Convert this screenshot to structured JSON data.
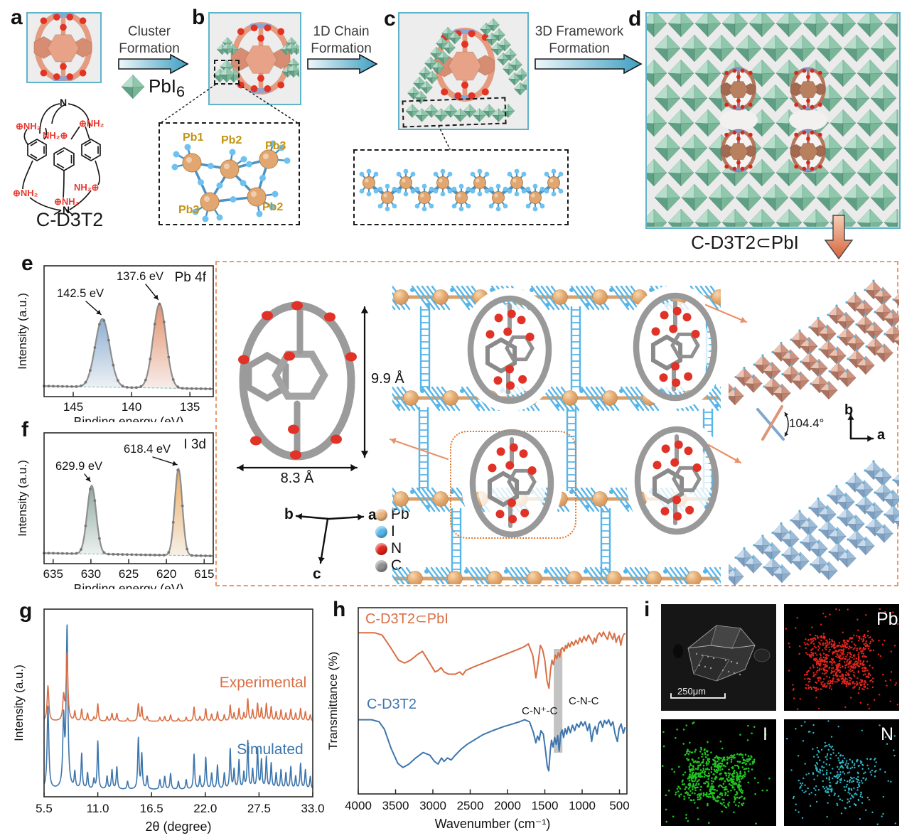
{
  "figure": {
    "panel_labels": {
      "a": "a",
      "b": "b",
      "c": "c",
      "d": "d",
      "e": "e",
      "f": "f",
      "g": "g",
      "h": "h",
      "i": "i"
    },
    "molecule_name": "C-D3T2",
    "product_name": "C-D3T2⊂PbI",
    "steps": {
      "step1": {
        "line1": "Cluster",
        "line2": "Formation"
      },
      "step2": {
        "line1": "1D Chain",
        "line2": "Formation"
      },
      "step3": {
        "line1": "3D Framework",
        "line2": "Formation"
      }
    },
    "pbi6_label": {
      "base": "PbI",
      "sub": "6"
    },
    "chem_structure": {
      "n_top": "N",
      "n_bottom": "N",
      "nh2_1": "⊕NH₂",
      "nh2_2": "NH₂⊕",
      "nh2_3": "⊕NH₂",
      "nh2_4": "⊕NH₂",
      "nh2_5": "NH₂⊕",
      "nh2_6": "⊕NH₂"
    },
    "cluster_inset": {
      "pb1": "Pb1",
      "pb2": "Pb2",
      "pb3": "Pb3",
      "pb3b": "Pb3",
      "pb2b": "Pb2"
    },
    "structure_panel": {
      "height": "9.9 Å",
      "width": "8.3 Å",
      "angle": "104.4°",
      "axis_b": "b",
      "axis_a": "a",
      "axis_c": "c",
      "axis_b2": "b",
      "axis_a2": "a",
      "legend": [
        {
          "label": "Pb",
          "color": "#eab37e"
        },
        {
          "label": "I",
          "color": "#56b7ea"
        },
        {
          "label": "N",
          "color": "#e0251b"
        },
        {
          "label": "C",
          "color": "#8f8f8f"
        }
      ]
    },
    "edx": {
      "scale_bar": "250μm",
      "map1": "Pb",
      "map2": "I",
      "map3": "N"
    }
  },
  "chart_data": [
    {
      "id": "xps_pb",
      "type": "line",
      "title": "Pb 4f",
      "xlabel": "Binding energy (eV)",
      "ylabel": "Intensity (a.u.)",
      "x_left": 147.5,
      "x_right": 133.0,
      "ticks": [
        "145",
        "140",
        "135"
      ],
      "peaks": [
        {
          "center": 142.5,
          "amp": 0.6,
          "sigma": 0.62,
          "fill_top": "#84a9cf",
          "fill_bottom": "#eef1f4",
          "label": "142.5 eV"
        },
        {
          "center": 137.6,
          "amp": 0.74,
          "sigma": 0.55,
          "fill_top": "#e38a63",
          "fill_bottom": "#f6ece8",
          "label": "137.6 eV"
        }
      ],
      "curve_color": "#8e8e8e",
      "marker_color": "#767676"
    },
    {
      "id": "xps_i",
      "type": "line",
      "title": "I 3d",
      "xlabel": "Binding energy (eV)",
      "ylabel": "Intensity (a.u.)",
      "x_left": 636.2,
      "x_right": 613.8,
      "ticks": [
        "635",
        "630",
        "625",
        "620",
        "615"
      ],
      "peaks": [
        {
          "center": 629.9,
          "amp": 0.6,
          "sigma": 0.6,
          "fill_top": "#86a498",
          "fill_bottom": "#edf1ef",
          "label": "629.9 eV"
        },
        {
          "center": 618.4,
          "amp": 0.76,
          "sigma": 0.5,
          "fill_top": "#e9a757",
          "fill_bottom": "#f6efe6",
          "label": "618.4 eV"
        }
      ],
      "curve_color": "#8e8e8e",
      "marker_color": "#767676"
    },
    {
      "id": "pxrd",
      "type": "line",
      "xlabel": "2θ (degree)",
      "ylabel": "Intensity (a.u.)",
      "xmin": 5.5,
      "xmax": 33.0,
      "ticks": [
        "5.5",
        "11.0",
        "16.5",
        "22.0",
        "27.5",
        "33.0"
      ],
      "peak_positions": [
        5.9,
        7.5,
        7.85,
        8.65,
        9.35,
        9.95,
        10.6,
        11.0,
        11.95,
        12.45,
        12.95,
        14.05,
        15.15,
        15.5,
        16.05,
        17.35,
        17.85,
        18.45,
        19.25,
        20.05,
        20.85,
        21.45,
        22.05,
        22.65,
        23.25,
        23.95,
        24.55,
        24.95,
        25.45,
        25.95,
        26.35,
        26.85,
        27.35,
        27.75,
        28.25,
        28.75,
        29.25,
        29.75,
        30.25,
        30.75,
        31.25,
        31.75,
        32.25,
        32.75
      ],
      "series": [
        {
          "name": "Experimental",
          "color": "#d96f45",
          "heights": [
            0.45,
            0.3,
            0.85,
            0.12,
            0.15,
            0.1,
            0.05,
            0.22,
            0.06,
            0.1,
            0.1,
            0.04,
            0.22,
            0.18,
            0.06,
            0.05,
            0.06,
            0.08,
            0.04,
            0.05,
            0.18,
            0.06,
            0.16,
            0.09,
            0.12,
            0.08,
            0.2,
            0.1,
            0.16,
            0.1,
            0.28,
            0.14,
            0.22,
            0.16,
            0.22,
            0.18,
            0.12,
            0.14,
            0.1,
            0.15,
            0.1,
            0.16,
            0.12,
            0.08
          ]
        },
        {
          "name": "Simulated",
          "color": "#3d76ad",
          "heights": [
            0.52,
            0.42,
            1.0,
            0.1,
            0.22,
            0.1,
            0.06,
            0.3,
            0.08,
            0.12,
            0.14,
            0.05,
            0.32,
            0.22,
            0.08,
            0.06,
            0.08,
            0.1,
            0.05,
            0.06,
            0.22,
            0.08,
            0.2,
            0.1,
            0.15,
            0.1,
            0.25,
            0.12,
            0.18,
            0.1,
            0.3,
            0.12,
            0.25,
            0.18,
            0.2,
            0.16,
            0.1,
            0.12,
            0.1,
            0.14,
            0.08,
            0.16,
            0.12,
            0.08
          ]
        }
      ]
    },
    {
      "id": "ftir",
      "type": "line",
      "xlabel": "Wavenumber (cm⁻¹)",
      "ylabel": "Transmittance (%)",
      "xmin": 4000,
      "xmax": 400,
      "ticks": [
        "4000",
        "3500",
        "3000",
        "2500",
        "2000",
        "1500",
        "1000",
        "500"
      ],
      "band": {
        "from": 1380,
        "to": 1265
      },
      "annotations": [
        {
          "text": "C-N⁺-C"
        },
        {
          "text": "C-N-C"
        }
      ],
      "series": [
        {
          "name": "C-D3T2⊂PbI",
          "color": "#d96f45",
          "points": [
            [
              4000,
              0.93
            ],
            [
              3780,
              0.93
            ],
            [
              3680,
              0.9
            ],
            [
              3560,
              0.72
            ],
            [
              3460,
              0.56
            ],
            [
              3380,
              0.52
            ],
            [
              3300,
              0.56
            ],
            [
              3200,
              0.64
            ],
            [
              3140,
              0.68
            ],
            [
              3060,
              0.55
            ],
            [
              2970,
              0.4
            ],
            [
              2930,
              0.42
            ],
            [
              2890,
              0.46
            ],
            [
              2850,
              0.4
            ],
            [
              2790,
              0.37
            ],
            [
              2700,
              0.37
            ],
            [
              2640,
              0.4
            ],
            [
              2600,
              0.36
            ],
            [
              2560,
              0.42
            ],
            [
              2450,
              0.47
            ],
            [
              2300,
              0.53
            ],
            [
              2100,
              0.61
            ],
            [
              1950,
              0.67
            ],
            [
              1850,
              0.71
            ],
            [
              1780,
              0.74
            ],
            [
              1720,
              0.78
            ],
            [
              1660,
              0.62
            ],
            [
              1620,
              0.32
            ],
            [
              1595,
              0.48
            ],
            [
              1560,
              0.76
            ],
            [
              1530,
              0.7
            ],
            [
              1500,
              0.56
            ],
            [
              1470,
              0.28
            ],
            [
              1445,
              0.18
            ],
            [
              1425,
              0.42
            ],
            [
              1405,
              0.56
            ],
            [
              1385,
              0.5
            ],
            [
              1360,
              0.63
            ],
            [
              1340,
              0.58
            ],
            [
              1318,
              0.66
            ],
            [
              1300,
              0.6
            ],
            [
              1282,
              0.71
            ],
            [
              1262,
              0.73
            ],
            [
              1240,
              0.68
            ],
            [
              1222,
              0.76
            ],
            [
              1205,
              0.72
            ],
            [
              1185,
              0.79
            ],
            [
              1165,
              0.74
            ],
            [
              1140,
              0.81
            ],
            [
              1112,
              0.76
            ],
            [
              1085,
              0.83
            ],
            [
              1058,
              0.78
            ],
            [
              1030,
              0.86
            ],
            [
              1005,
              0.8
            ],
            [
              975,
              0.88
            ],
            [
              945,
              0.82
            ],
            [
              915,
              0.9
            ],
            [
              885,
              0.84
            ],
            [
              855,
              0.78
            ],
            [
              835,
              0.86
            ],
            [
              815,
              0.8
            ],
            [
              795,
              0.89
            ],
            [
              768,
              0.93
            ],
            [
              740,
              0.88
            ],
            [
              715,
              0.94
            ],
            [
              690,
              0.89
            ],
            [
              660,
              0.84
            ],
            [
              635,
              0.94
            ],
            [
              612,
              0.89
            ],
            [
              590,
              0.84
            ],
            [
              568,
              0.92
            ],
            [
              545,
              0.8
            ],
            [
              525,
              0.86
            ],
            [
              505,
              0.89
            ],
            [
              482,
              0.76
            ],
            [
              462,
              0.86
            ],
            [
              442,
              0.91
            ],
            [
              420,
              0.92
            ]
          ]
        },
        {
          "name": "C-D3T2",
          "color": "#3d76ad",
          "points": [
            [
              4000,
              0.9
            ],
            [
              3820,
              0.9
            ],
            [
              3720,
              0.87
            ],
            [
              3650,
              0.76
            ],
            [
              3560,
              0.48
            ],
            [
              3470,
              0.26
            ],
            [
              3400,
              0.2
            ],
            [
              3320,
              0.25
            ],
            [
              3230,
              0.34
            ],
            [
              3130,
              0.42
            ],
            [
              3040,
              0.38
            ],
            [
              2980,
              0.29
            ],
            [
              2930,
              0.25
            ],
            [
              2885,
              0.34
            ],
            [
              2850,
              0.29
            ],
            [
              2805,
              0.34
            ],
            [
              2755,
              0.31
            ],
            [
              2700,
              0.38
            ],
            [
              2620,
              0.47
            ],
            [
              2540,
              0.54
            ],
            [
              2450,
              0.6
            ],
            [
              2330,
              0.68
            ],
            [
              2200,
              0.74
            ],
            [
              2050,
              0.8
            ],
            [
              1930,
              0.84
            ],
            [
              1840,
              0.87
            ],
            [
              1770,
              0.9
            ],
            [
              1705,
              0.87
            ],
            [
              1655,
              0.72
            ],
            [
              1620,
              0.56
            ],
            [
              1598,
              0.66
            ],
            [
              1575,
              0.6
            ],
            [
              1552,
              0.74
            ],
            [
              1520,
              0.69
            ],
            [
              1492,
              0.46
            ],
            [
              1468,
              0.22
            ],
            [
              1448,
              0.15
            ],
            [
              1428,
              0.44
            ],
            [
              1410,
              0.6
            ],
            [
              1390,
              0.5
            ],
            [
              1368,
              0.64
            ],
            [
              1348,
              0.54
            ],
            [
              1328,
              0.67
            ],
            [
              1308,
              0.44
            ],
            [
              1288,
              0.7
            ],
            [
              1268,
              0.75
            ],
            [
              1248,
              0.64
            ],
            [
              1228,
              0.77
            ],
            [
              1208,
              0.69
            ],
            [
              1185,
              0.8
            ],
            [
              1158,
              0.71
            ],
            [
              1130,
              0.82
            ],
            [
              1100,
              0.74
            ],
            [
              1072,
              0.84
            ],
            [
              1042,
              0.79
            ],
            [
              1015,
              0.87
            ],
            [
              988,
              0.81
            ],
            [
              960,
              0.87
            ],
            [
              928,
              0.74
            ],
            [
              902,
              0.84
            ],
            [
              872,
              0.58
            ],
            [
              850,
              0.74
            ],
            [
              825,
              0.8
            ],
            [
              800,
              0.69
            ],
            [
              778,
              0.84
            ],
            [
              752,
              0.88
            ],
            [
              726,
              0.79
            ],
            [
              700,
              0.89
            ],
            [
              672,
              0.84
            ],
            [
              645,
              0.9
            ],
            [
              615,
              0.81
            ],
            [
              588,
              0.87
            ],
            [
              558,
              0.69
            ],
            [
              528,
              0.58
            ],
            [
              505,
              0.77
            ],
            [
              478,
              0.84
            ],
            [
              448,
              0.7
            ],
            [
              425,
              0.79
            ]
          ]
        }
      ]
    }
  ]
}
